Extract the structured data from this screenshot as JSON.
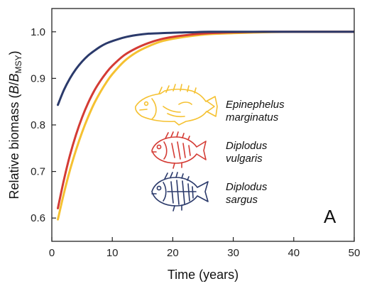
{
  "chart_data": {
    "type": "line",
    "title": "",
    "panel_label": "A",
    "xlabel": "Time (years)",
    "ylabel": {
      "prefix": "Relative biomass (",
      "b": "B",
      "slash": "/",
      "bsub": "B",
      "sub": "MSY",
      "suffix": ")"
    },
    "xlim": [
      0,
      50
    ],
    "ylim": [
      0.55,
      1.05
    ],
    "xticks": [
      0,
      10,
      20,
      30,
      40,
      50
    ],
    "yticks": [
      0.6,
      0.7,
      0.8,
      0.9,
      1.0
    ],
    "ytick_labels": [
      "0.6",
      "0.7",
      "0.8",
      "0.9",
      "1.0"
    ],
    "grid": false,
    "legend_placement": "center",
    "series": [
      {
        "name": "Epinephelus marginatus",
        "name_lines": [
          "Epinephelus",
          "marginatus"
        ],
        "color": "#f5c131",
        "icon": "grouper-fish-icon",
        "x": [
          1,
          2,
          3,
          4,
          5,
          6,
          7,
          8,
          9,
          10,
          12,
          14,
          16,
          18,
          20,
          23,
          26,
          30,
          35,
          40,
          45,
          50
        ],
        "y": [
          0.597,
          0.653,
          0.703,
          0.746,
          0.784,
          0.817,
          0.846,
          0.87,
          0.891,
          0.909,
          0.937,
          0.956,
          0.969,
          0.979,
          0.985,
          0.991,
          0.995,
          0.997,
          0.999,
          1.0,
          1.0,
          1.0
        ]
      },
      {
        "name": "Diplodus vulgaris",
        "name_lines": [
          "Diplodus",
          "vulgaris"
        ],
        "color": "#d43b34",
        "icon": "seabream-fish-icon",
        "x": [
          1,
          2,
          3,
          4,
          5,
          6,
          7,
          8,
          9,
          10,
          12,
          14,
          16,
          18,
          20,
          23,
          26,
          30,
          35,
          40,
          45,
          50
        ],
        "y": [
          0.621,
          0.682,
          0.735,
          0.779,
          0.816,
          0.847,
          0.873,
          0.894,
          0.912,
          0.927,
          0.95,
          0.965,
          0.976,
          0.984,
          0.989,
          0.994,
          0.997,
          0.999,
          1.0,
          1.0,
          1.0,
          1.0
        ]
      },
      {
        "name": "Diplodus sargus",
        "name_lines": [
          "Diplodus",
          "sargus"
        ],
        "color": "#2b3a6b",
        "icon": "striped-seabream-fish-icon",
        "x": [
          1,
          2,
          3,
          4,
          5,
          6,
          7,
          8,
          9,
          10,
          12,
          14,
          16,
          18,
          20,
          23,
          26,
          30,
          35,
          40,
          45,
          50
        ],
        "y": [
          0.843,
          0.875,
          0.9,
          0.92,
          0.936,
          0.949,
          0.959,
          0.968,
          0.975,
          0.98,
          0.988,
          0.993,
          0.996,
          0.997,
          0.998,
          0.999,
          1.0,
          1.0,
          1.0,
          1.0,
          1.0,
          1.0
        ]
      }
    ]
  }
}
